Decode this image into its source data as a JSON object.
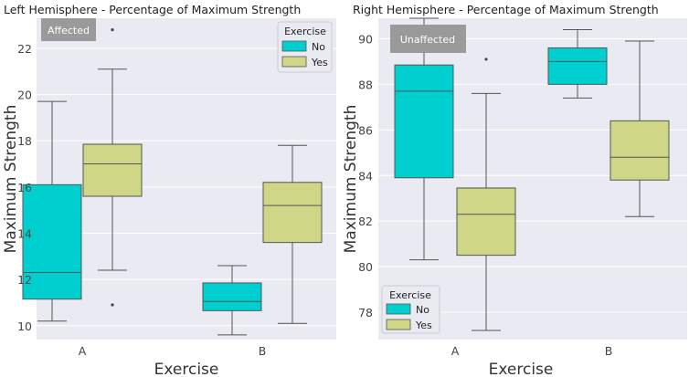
{
  "colors": {
    "no": "#00cfcf",
    "yes": "#cfd685",
    "badge_bg": "#9a9a9a",
    "badge_text": "#ffffff",
    "plot_bg": "#eaeaf2"
  },
  "chart_data": [
    {
      "type": "box",
      "title": "Left Hemisphere - Percentage of Maximum Strength",
      "badge": "Affected",
      "xlabel": "Exercise",
      "ylabel": "Maximum Strength",
      "ylim": [
        9.4,
        23.3
      ],
      "yticks": [
        10,
        12,
        14,
        16,
        18,
        20,
        22
      ],
      "ytick_labels": [
        "10",
        "12",
        "14",
        "16",
        "18",
        "20",
        "22"
      ],
      "categories": [
        "A",
        "B"
      ],
      "legend": {
        "title": "Exercise",
        "entries": [
          "No",
          "Yes"
        ],
        "position": "top-right"
      },
      "series": [
        {
          "name": "No",
          "boxes": [
            {
              "category": "A",
              "whislo": 10.2,
              "q1": 11.15,
              "med": 12.3,
              "q3": 16.1,
              "whishi": 19.7,
              "fliers": []
            },
            {
              "category": "B",
              "whislo": 9.6,
              "q1": 10.65,
              "med": 11.05,
              "q3": 11.85,
              "whishi": 12.6,
              "fliers": []
            }
          ]
        },
        {
          "name": "Yes",
          "boxes": [
            {
              "category": "A",
              "whislo": 12.4,
              "q1": 15.6,
              "med": 17.0,
              "q3": 17.85,
              "whishi": 21.1,
              "fliers": [
                10.9,
                22.8
              ]
            },
            {
              "category": "B",
              "whislo": 10.1,
              "q1": 13.6,
              "med": 15.2,
              "q3": 16.2,
              "whishi": 17.8,
              "fliers": []
            }
          ]
        }
      ]
    },
    {
      "type": "box",
      "title": "Right Hemisphere - Percentage of Maximum Strength",
      "badge": "Unaffected",
      "xlabel": "Exercise",
      "ylabel": "Maximum Strength",
      "ylim": [
        76.8,
        90.9
      ],
      "yticks": [
        78,
        80,
        82,
        84,
        86,
        88,
        90
      ],
      "ytick_labels": [
        "78",
        "80",
        "82",
        "84",
        "86",
        "88",
        "90"
      ],
      "categories": [
        "A",
        "B"
      ],
      "legend": {
        "title": "Exercise",
        "entries": [
          "No",
          "Yes"
        ],
        "position": "bottom-left"
      },
      "series": [
        {
          "name": "No",
          "boxes": [
            {
              "category": "A",
              "whislo": 80.3,
              "q1": 83.9,
              "med": 87.7,
              "q3": 88.85,
              "whishi": 90.9,
              "fliers": []
            },
            {
              "category": "B",
              "whislo": 87.4,
              "q1": 88.0,
              "med": 89.0,
              "q3": 89.6,
              "whishi": 90.4,
              "fliers": []
            }
          ]
        },
        {
          "name": "Yes",
          "boxes": [
            {
              "category": "A",
              "whislo": 77.2,
              "q1": 80.5,
              "med": 82.3,
              "q3": 83.45,
              "whishi": 87.6,
              "fliers": [
                89.1
              ]
            },
            {
              "category": "B",
              "whislo": 82.2,
              "q1": 83.8,
              "med": 84.8,
              "q3": 86.4,
              "whishi": 89.9,
              "fliers": []
            }
          ]
        }
      ]
    }
  ]
}
